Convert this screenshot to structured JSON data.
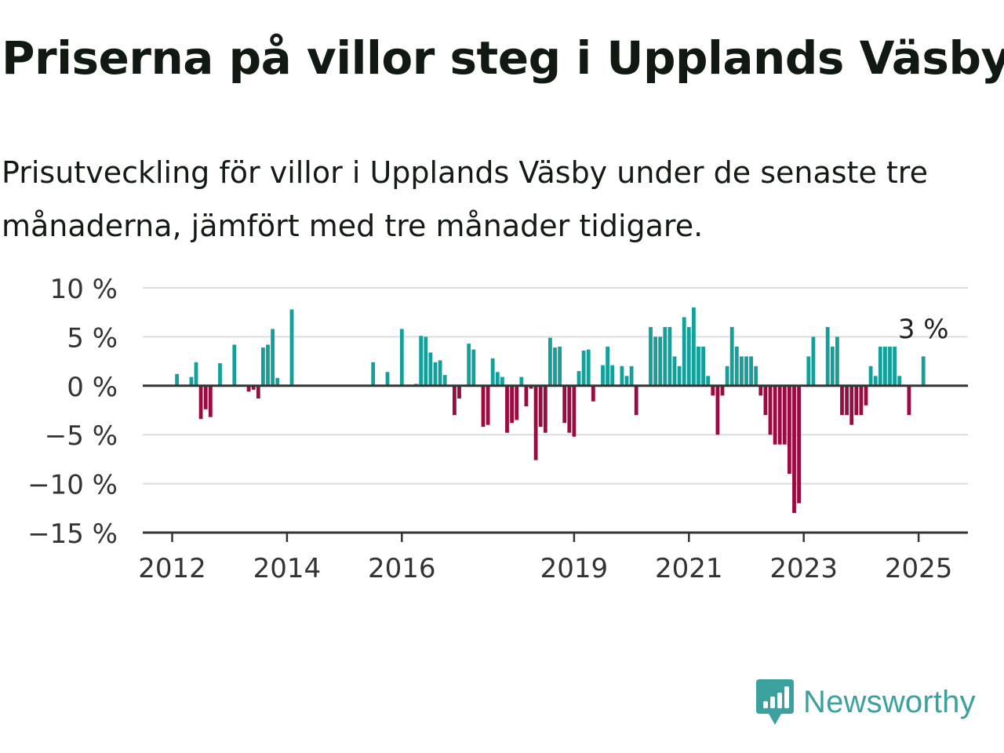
{
  "title": "Priserna på villor steg i Upplands Väsby",
  "subtitle": "Prisutveckling för villor i Upplands Väsby under de senaste tre månaderna, jämfört med tre månader tidigare.",
  "brand": {
    "name": "Newsworthy",
    "color": "#3aa19e"
  },
  "colors": {
    "positive": "#14a09a",
    "negative": "#9b0a40",
    "grid": "#dcdcdc",
    "axis": "#333333"
  },
  "chart_data": {
    "type": "bar",
    "title": "Priserna på villor steg i Upplands Väsby",
    "xlabel": "",
    "ylabel": "",
    "ylim": [
      -15,
      10
    ],
    "yticks": [
      {
        "value": 10,
        "label": "10 %"
      },
      {
        "value": 5,
        "label": "5 %"
      },
      {
        "value": 0,
        "label": "0 %"
      },
      {
        "value": -5,
        "label": "−5 %"
      },
      {
        "value": -10,
        "label": "−10 %"
      },
      {
        "value": -15,
        "label": "−15 %"
      }
    ],
    "xticks": [
      "2012",
      "2014",
      "2016",
      "2019",
      "2021",
      "2023",
      "2025"
    ],
    "xtick_positions": [
      "2012-01",
      "2014-01",
      "2016-01",
      "2019-01",
      "2021-01",
      "2023-01",
      "2025-01"
    ],
    "grid": true,
    "annotation": {
      "label": "3 %",
      "date": "2025-02"
    },
    "series": [
      {
        "values": [
          {
            "date": "2012-02",
            "value": 1.2
          },
          {
            "date": "2012-05",
            "value": 0.9
          },
          {
            "date": "2012-06",
            "value": 2.4
          },
          {
            "date": "2012-07",
            "value": -3.4
          },
          {
            "date": "2012-08",
            "value": -2.4
          },
          {
            "date": "2012-09",
            "value": -3.2
          },
          {
            "date": "2012-11",
            "value": 2.3
          },
          {
            "date": "2013-02",
            "value": 4.2
          },
          {
            "date": "2013-05",
            "value": -0.6
          },
          {
            "date": "2013-06",
            "value": -0.4
          },
          {
            "date": "2013-07",
            "value": -1.3
          },
          {
            "date": "2013-08",
            "value": 3.9
          },
          {
            "date": "2013-09",
            "value": 4.2
          },
          {
            "date": "2013-10",
            "value": 5.8
          },
          {
            "date": "2013-11",
            "value": 0.8
          },
          {
            "date": "2014-02",
            "value": 7.8
          },
          {
            "date": "2015-07",
            "value": 2.4
          },
          {
            "date": "2015-10",
            "value": 1.4
          },
          {
            "date": "2016-01",
            "value": 5.8
          },
          {
            "date": "2016-04",
            "value": 0.2
          },
          {
            "date": "2016-05",
            "value": 5.1
          },
          {
            "date": "2016-06",
            "value": 5.0
          },
          {
            "date": "2016-07",
            "value": 3.4
          },
          {
            "date": "2016-08",
            "value": 2.4
          },
          {
            "date": "2016-09",
            "value": 2.6
          },
          {
            "date": "2016-10",
            "value": 1.1
          },
          {
            "date": "2016-12",
            "value": -3.0
          },
          {
            "date": "2017-01",
            "value": -1.3
          },
          {
            "date": "2017-03",
            "value": 4.3
          },
          {
            "date": "2017-04",
            "value": 3.7
          },
          {
            "date": "2017-06",
            "value": -4.2
          },
          {
            "date": "2017-07",
            "value": -4.0
          },
          {
            "date": "2017-08",
            "value": 2.8
          },
          {
            "date": "2017-09",
            "value": 1.4
          },
          {
            "date": "2017-10",
            "value": 0.9
          },
          {
            "date": "2017-11",
            "value": -4.8
          },
          {
            "date": "2017-12",
            "value": -3.8
          },
          {
            "date": "2018-01",
            "value": -3.5
          },
          {
            "date": "2018-02",
            "value": 0.9
          },
          {
            "date": "2018-03",
            "value": -2.1
          },
          {
            "date": "2018-04",
            "value": -0.3
          },
          {
            "date": "2018-05",
            "value": -7.6
          },
          {
            "date": "2018-06",
            "value": -4.2
          },
          {
            "date": "2018-07",
            "value": -4.8
          },
          {
            "date": "2018-08",
            "value": 4.9
          },
          {
            "date": "2018-09",
            "value": 3.9
          },
          {
            "date": "2018-10",
            "value": 4.0
          },
          {
            "date": "2018-11",
            "value": -3.8
          },
          {
            "date": "2018-12",
            "value": -4.8
          },
          {
            "date": "2019-01",
            "value": -5.2
          },
          {
            "date": "2019-02",
            "value": 1.5
          },
          {
            "date": "2019-03",
            "value": 3.6
          },
          {
            "date": "2019-04",
            "value": 3.7
          },
          {
            "date": "2019-05",
            "value": -1.6
          },
          {
            "date": "2019-07",
            "value": 2.1
          },
          {
            "date": "2019-08",
            "value": 4.0
          },
          {
            "date": "2019-09",
            "value": 2.1
          },
          {
            "date": "2019-11",
            "value": 2.0
          },
          {
            "date": "2019-12",
            "value": 1.0
          },
          {
            "date": "2020-01",
            "value": 2.0
          },
          {
            "date": "2020-02",
            "value": -3.0
          },
          {
            "date": "2020-05",
            "value": 6.0
          },
          {
            "date": "2020-06",
            "value": 5.0
          },
          {
            "date": "2020-07",
            "value": 5.0
          },
          {
            "date": "2020-08",
            "value": 6.0
          },
          {
            "date": "2020-09",
            "value": 6.0
          },
          {
            "date": "2020-10",
            "value": 3.0
          },
          {
            "date": "2020-11",
            "value": 2.0
          },
          {
            "date": "2020-12",
            "value": 7.0
          },
          {
            "date": "2021-01",
            "value": 6.0
          },
          {
            "date": "2021-02",
            "value": 8.0
          },
          {
            "date": "2021-03",
            "value": 4.0
          },
          {
            "date": "2021-04",
            "value": 4.0
          },
          {
            "date": "2021-05",
            "value": 1.0
          },
          {
            "date": "2021-06",
            "value": -1.0
          },
          {
            "date": "2021-07",
            "value": -5.0
          },
          {
            "date": "2021-08",
            "value": -1.0
          },
          {
            "date": "2021-09",
            "value": 2.0
          },
          {
            "date": "2021-10",
            "value": 6.0
          },
          {
            "date": "2021-11",
            "value": 4.0
          },
          {
            "date": "2021-12",
            "value": 3.0
          },
          {
            "date": "2022-01",
            "value": 3.0
          },
          {
            "date": "2022-02",
            "value": 3.0
          },
          {
            "date": "2022-03",
            "value": 2.0
          },
          {
            "date": "2022-04",
            "value": -1.0
          },
          {
            "date": "2022-05",
            "value": -3.0
          },
          {
            "date": "2022-06",
            "value": -5.0
          },
          {
            "date": "2022-07",
            "value": -6.0
          },
          {
            "date": "2022-08",
            "value": -6.0
          },
          {
            "date": "2022-09",
            "value": -6.0
          },
          {
            "date": "2022-10",
            "value": -9.0
          },
          {
            "date": "2022-11",
            "value": -13.0
          },
          {
            "date": "2022-12",
            "value": -12.0
          },
          {
            "date": "2023-02",
            "value": 3.0
          },
          {
            "date": "2023-03",
            "value": 5.0
          },
          {
            "date": "2023-06",
            "value": 6.0
          },
          {
            "date": "2023-07",
            "value": 4.0
          },
          {
            "date": "2023-08",
            "value": 5.0
          },
          {
            "date": "2023-09",
            "value": -3.0
          },
          {
            "date": "2023-10",
            "value": -3.0
          },
          {
            "date": "2023-11",
            "value": -4.0
          },
          {
            "date": "2023-12",
            "value": -3.0
          },
          {
            "date": "2024-01",
            "value": -3.0
          },
          {
            "date": "2024-02",
            "value": -2.0
          },
          {
            "date": "2024-03",
            "value": 2.0
          },
          {
            "date": "2024-04",
            "value": 1.0
          },
          {
            "date": "2024-05",
            "value": 4.0
          },
          {
            "date": "2024-06",
            "value": 4.0
          },
          {
            "date": "2024-07",
            "value": 4.0
          },
          {
            "date": "2024-08",
            "value": 4.0
          },
          {
            "date": "2024-09",
            "value": 1.0
          },
          {
            "date": "2024-11",
            "value": -3.0
          },
          {
            "date": "2025-02",
            "value": 3.0
          }
        ]
      }
    ]
  }
}
